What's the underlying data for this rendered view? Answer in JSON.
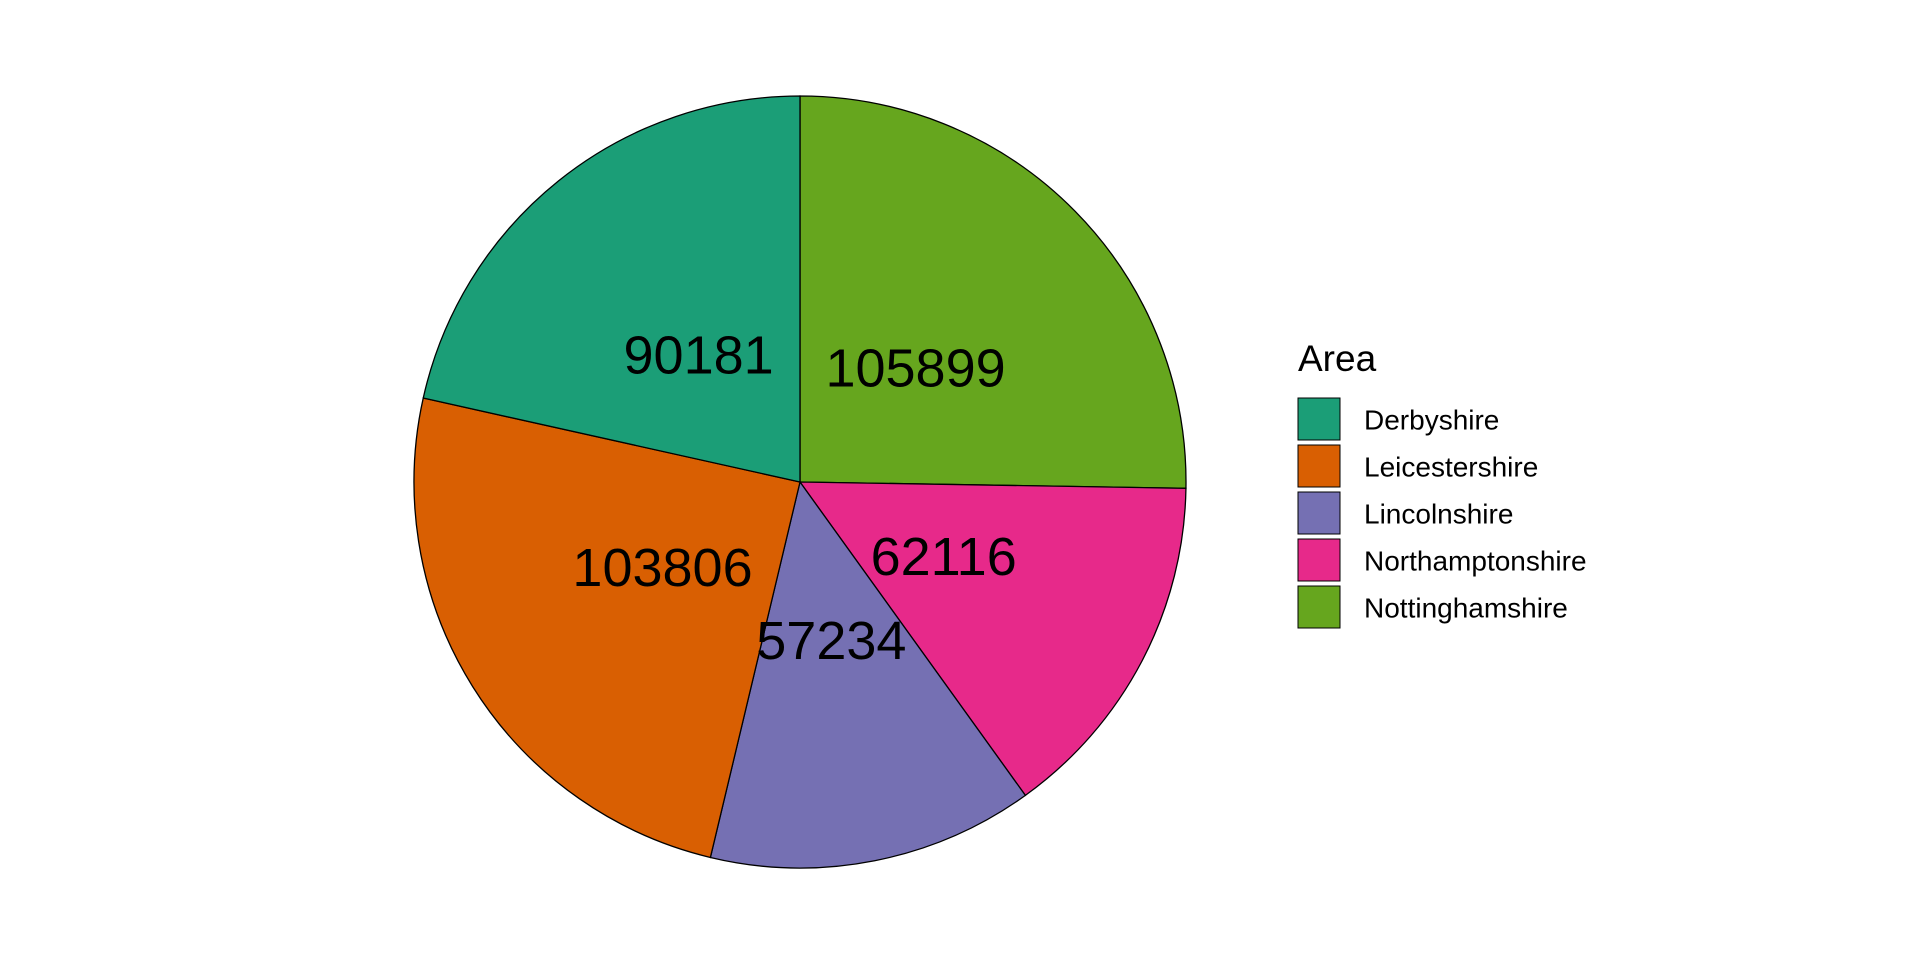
{
  "chart_data": {
    "type": "pie",
    "categories": [
      "Derbyshire",
      "Leicestershire",
      "Lincolnshire",
      "Northamptonshire",
      "Nottinghamshire"
    ],
    "values": [
      90181,
      103806,
      57234,
      62116,
      105899
    ],
    "colors": {
      "Derbyshire": "#1B9E77",
      "Leicestershire": "#D95F02",
      "Lincolnshire": "#7570B3",
      "Northamptonshire": "#E7298A",
      "Nottinghamshire": "#66A61E"
    },
    "slice_order_clockwise_from_top": [
      "Nottinghamshire",
      "Northamptonshire",
      "Lincolnshire",
      "Leicestershire",
      "Derbyshire"
    ],
    "data_labels": [
      "90181",
      "103806",
      "57234",
      "62116",
      "105899"
    ],
    "legend": {
      "title": "Area",
      "placement": "right",
      "entries": [
        "Derbyshire",
        "Leicestershire",
        "Lincolnshire",
        "Northamptonshire",
        "Nottinghamshire"
      ]
    }
  }
}
